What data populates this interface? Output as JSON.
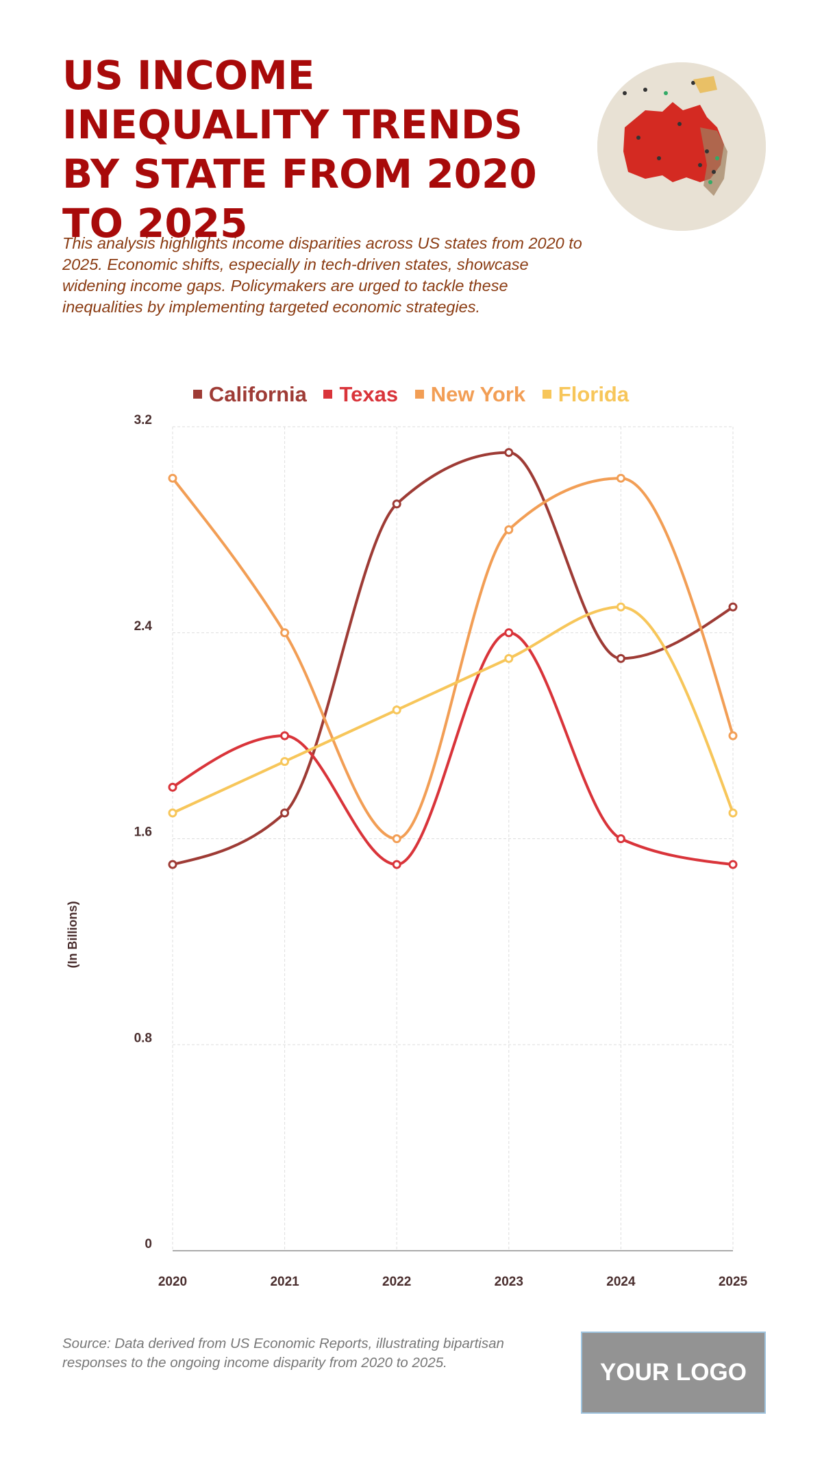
{
  "header": {
    "title": "US INCOME INEQUALITY TRENDS BY STATE FROM 2020 TO 2025",
    "description": "This analysis highlights income disparities across US states from 2020 to 2025. Economic shifts, especially in tech-driven states, showcase widening income gaps. Policymakers are urged to tackle these inequalities by implementing targeted economic strategies."
  },
  "chart_data": {
    "type": "line",
    "title": "",
    "xlabel": "",
    "ylabel": "(In Billions)",
    "x": [
      "2020",
      "2021",
      "2022",
      "2023",
      "2024",
      "2025"
    ],
    "ylim": [
      0,
      3.2
    ],
    "yticks": [
      "0",
      "0.8",
      "1.6",
      "2.4",
      "3.2"
    ],
    "ytick_values": [
      0,
      0.8,
      1.6,
      2.4,
      3.2
    ],
    "grid": true,
    "legend_position": "top-center",
    "series": [
      {
        "name": "California",
        "color": "#9e3b35",
        "values": [
          1.5,
          1.7,
          2.9,
          3.1,
          2.3,
          2.5
        ]
      },
      {
        "name": "Texas",
        "color": "#d9343a",
        "values": [
          1.8,
          2.0,
          1.5,
          2.4,
          1.6,
          1.5
        ]
      },
      {
        "name": "New York",
        "color": "#f29e55",
        "values": [
          3.0,
          2.4,
          1.6,
          2.8,
          3.0,
          2.0
        ]
      },
      {
        "name": "Florida",
        "color": "#f7c65a",
        "values": [
          1.7,
          1.9,
          2.1,
          2.3,
          2.5,
          1.7
        ]
      }
    ]
  },
  "footer": {
    "source": "Source: Data derived from US Economic Reports, illustrating bipartisan responses to the ongoing income disparity from 2020 to 2025.",
    "logo": "YOUR LOGO"
  }
}
